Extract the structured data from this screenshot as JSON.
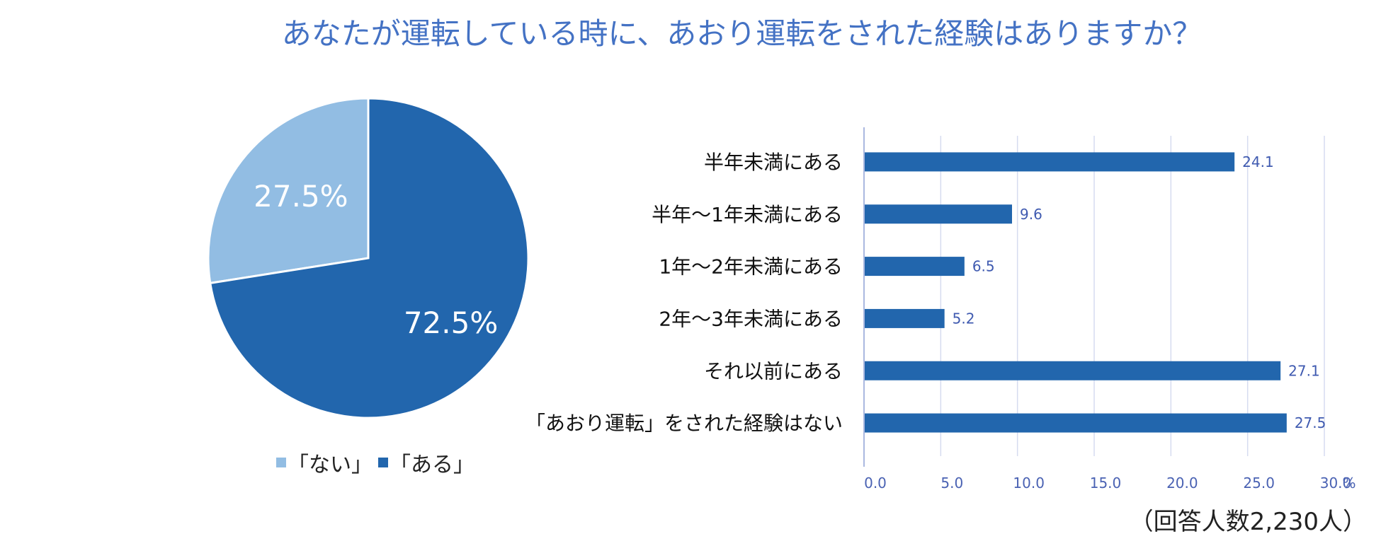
{
  "title": "あなたが運転している時に、あおり運転をされた経験はありますか？",
  "footnote": "（回答人数2,230人）",
  "colors": {
    "title": "#4472c4",
    "pie_nai": "#92bde3",
    "pie_aru": "#2266ad",
    "bar": "#2266ad",
    "grid": "#d6dcf0"
  },
  "chart_data": [
    {
      "type": "pie",
      "slices": [
        {
          "name": "「ない」",
          "value": 27.5,
          "label": "27.5%"
        },
        {
          "name": "「ある」",
          "value": 72.5,
          "label": "72.5%"
        }
      ],
      "legend": [
        "「ない」",
        "「ある」"
      ],
      "legend_position": "bottom"
    },
    {
      "type": "bar",
      "orientation": "horizontal",
      "categories": [
        "半年未満にある",
        "半年～1年未満にある",
        "1年～2年未満にある",
        "2年～3年未満にある",
        "それ以前にある",
        "「あおり運転」をされた経験はない"
      ],
      "values": [
        24.1,
        9.6,
        6.5,
        5.2,
        27.1,
        27.5
      ],
      "value_labels": [
        "24.1",
        "9.6",
        "6.5",
        "5.2",
        "27.1",
        "27.5"
      ],
      "xlim": [
        0,
        30
      ],
      "ticks": [
        "0.0",
        "5.0",
        "10.0",
        "15.0",
        "20.0",
        "25.0",
        "30.0"
      ],
      "xunit": "%",
      "grid": true
    }
  ]
}
